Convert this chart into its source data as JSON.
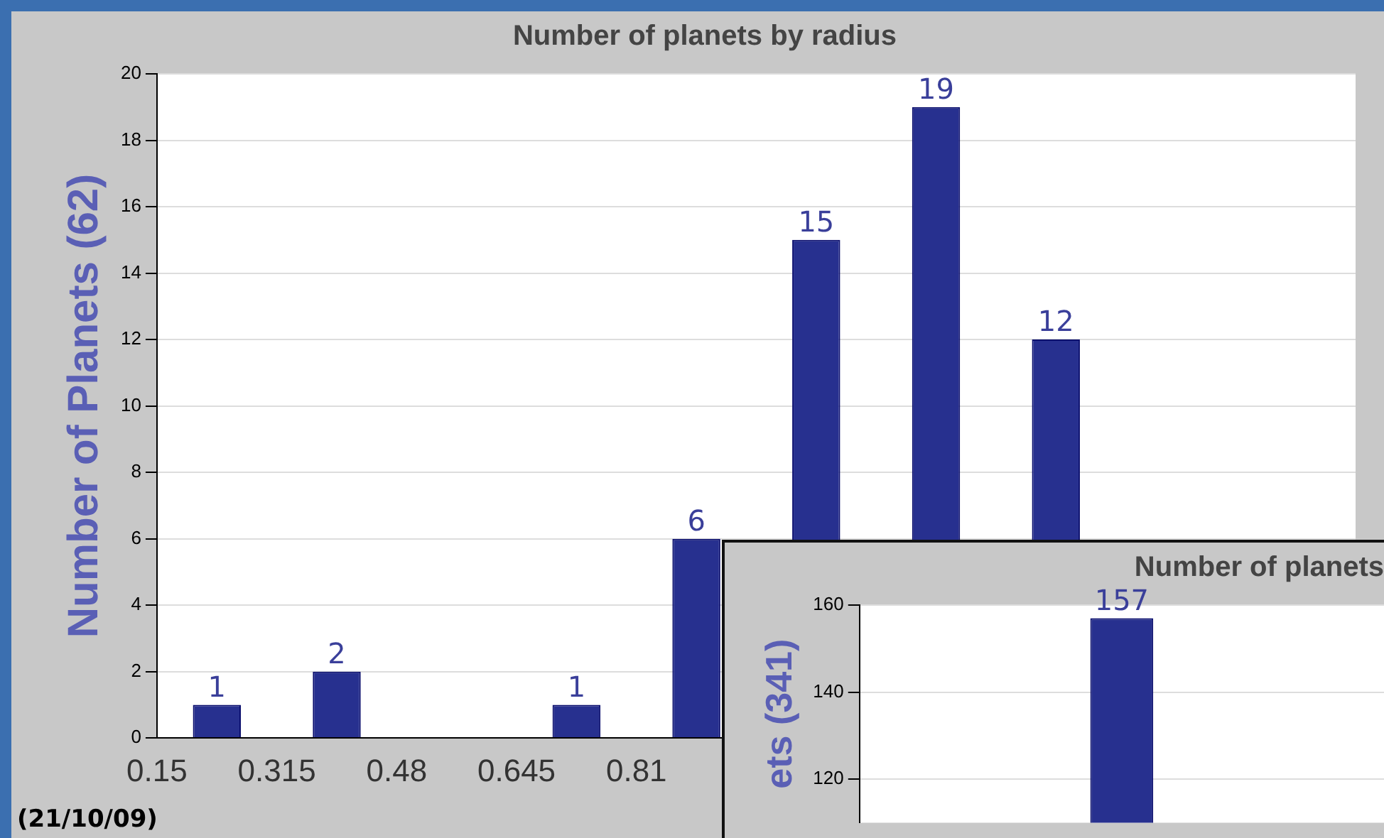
{
  "chart_data": [
    {
      "type": "bar",
      "title": "Number of planets by radius",
      "ylabel": "Number of Planets (62)",
      "x": [
        0.2325,
        0.3975,
        0.7275,
        0.8925,
        1.0575,
        1.2225,
        1.3875
      ],
      "values": [
        1,
        2,
        1,
        6,
        15,
        19,
        12
      ],
      "color": "#27308f",
      "xlim": [
        0.15,
        1.8
      ],
      "xticks": [
        0.15,
        0.315,
        0.48,
        0.645,
        0.81
      ],
      "ylim": [
        0,
        20
      ],
      "yticks": [
        0,
        2,
        4,
        6,
        8,
        10,
        12,
        14,
        16,
        18,
        20
      ],
      "grid": "y",
      "data_labels": true,
      "annotations": [
        "(21/10/09)"
      ]
    },
    {
      "type": "bar",
      "title": "Number of planets",
      "ylabel": "ets (341)",
      "categories": [
        null
      ],
      "values": [
        157
      ],
      "color": "#27308f",
      "ylim": [
        110,
        160
      ],
      "yticks": [
        120,
        140,
        160
      ],
      "grid": "y",
      "data_labels": true
    }
  ]
}
